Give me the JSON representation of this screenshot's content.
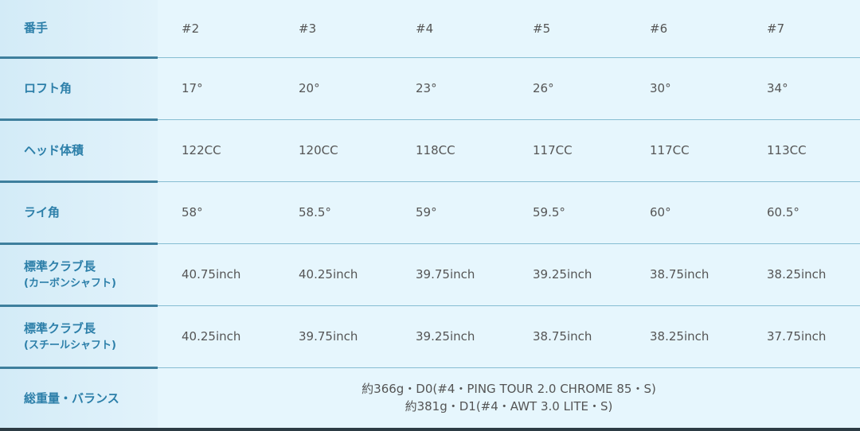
{
  "rows": [
    {
      "label": "番手",
      "values": [
        "#2",
        "#3",
        "#4",
        "#5",
        "#6",
        "#7"
      ]
    },
    {
      "label": "ロフト角",
      "values": [
        "17°",
        "20°",
        "23°",
        "26°",
        "30°",
        "34°"
      ]
    },
    {
      "label": "ヘッド体積",
      "values": [
        "122CC",
        "120CC",
        "118CC",
        "117CC",
        "117CC",
        "113CC"
      ]
    },
    {
      "label": "ライ角",
      "values": [
        "58°",
        "58.5°",
        "59°",
        "59.5°",
        "60°",
        "60.5°"
      ]
    },
    {
      "label": "標準クラブ長",
      "sublabel": "(カーボンシャフト)",
      "values": [
        "40.75inch",
        "40.25inch",
        "39.75inch",
        "39.25inch",
        "38.75inch",
        "38.25inch"
      ]
    },
    {
      "label": "標準クラブ長",
      "sublabel": "(スチールシャフト)",
      "values": [
        "40.25inch",
        "39.75inch",
        "39.25inch",
        "38.75inch",
        "38.25inch",
        "37.75inch"
      ]
    }
  ],
  "weight": {
    "label": "総重量・バランス",
    "line1": "約366g・D0(#4・PING TOUR 2.0 CHROME 85・S)",
    "line2": "約381g・D1(#4・AWT 3.0 LITE・S)"
  }
}
